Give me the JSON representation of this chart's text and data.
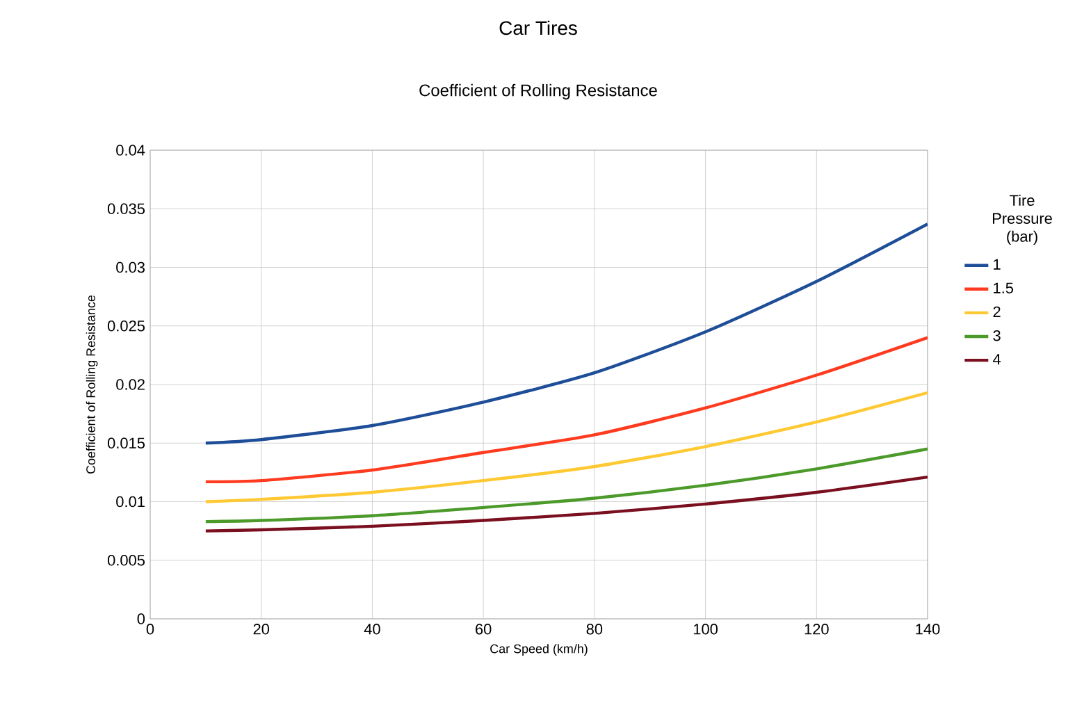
{
  "chart_data": {
    "type": "line",
    "title": "Car Tires",
    "subtitle": "Coefficient of Rolling Resistance",
    "xlabel": "Car Speed (km/h)",
    "ylabel": "Coefficient of Rolling Resistance",
    "legend_title": "Tire Pressure (bar)",
    "x": [
      10,
      20,
      40,
      60,
      80,
      100,
      120,
      140
    ],
    "series": [
      {
        "name": "1",
        "color": "#1f4e99",
        "values": [
          0.015,
          0.0153,
          0.0165,
          0.0185,
          0.021,
          0.0245,
          0.0288,
          0.0337
        ]
      },
      {
        "name": "1.5",
        "color": "#ff3b1f",
        "values": [
          0.0117,
          0.0118,
          0.0127,
          0.0142,
          0.0157,
          0.018,
          0.0208,
          0.024
        ]
      },
      {
        "name": "2",
        "color": "#ffc933",
        "values": [
          0.01,
          0.0102,
          0.0108,
          0.0118,
          0.013,
          0.0147,
          0.0168,
          0.0193
        ]
      },
      {
        "name": "3",
        "color": "#4c9a2a",
        "values": [
          0.0083,
          0.0084,
          0.0088,
          0.0095,
          0.0103,
          0.0114,
          0.0128,
          0.0145
        ]
      },
      {
        "name": "4",
        "color": "#7a0f1f",
        "values": [
          0.0075,
          0.0076,
          0.0079,
          0.0084,
          0.009,
          0.0098,
          0.0108,
          0.0121
        ]
      }
    ],
    "xlim": [
      0,
      140
    ],
    "xticks": [
      0,
      20,
      40,
      60,
      80,
      100,
      120,
      140
    ],
    "ylim": [
      0,
      0.04
    ],
    "yticks": [
      0,
      0.005,
      0.01,
      0.015,
      0.02,
      0.025,
      0.03,
      0.035,
      0.04
    ],
    "grid": true,
    "legend": "right",
    "marker": "none",
    "line_style": "solid"
  }
}
